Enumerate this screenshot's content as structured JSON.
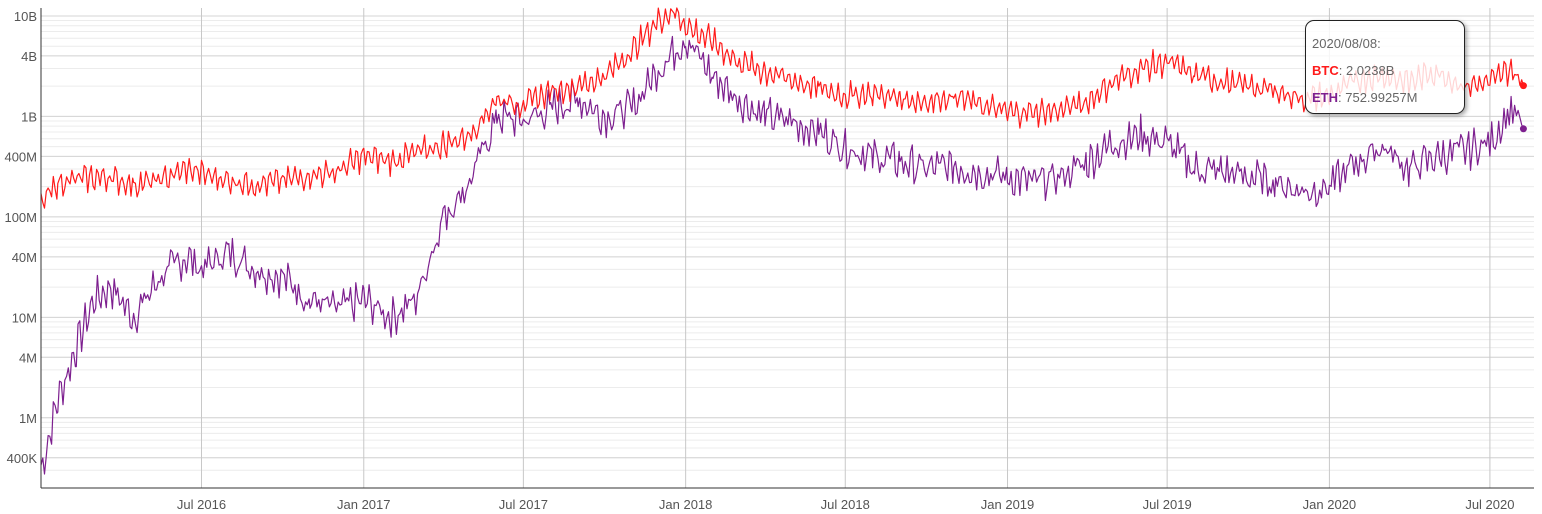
{
  "chart_data": {
    "type": "line",
    "yscale": "log",
    "ylim": [
      200000,
      12000000000
    ],
    "xlim": [
      "2016-01-01",
      "2020-08-20"
    ],
    "grid": true,
    "legend": "none",
    "y_ticks": [
      {
        "value": 10000000000,
        "label": "10B"
      },
      {
        "value": 4000000000,
        "label": "4B"
      },
      {
        "value": 1000000000,
        "label": "1B"
      },
      {
        "value": 400000000,
        "label": "400M"
      },
      {
        "value": 100000000,
        "label": "100M"
      },
      {
        "value": 40000000,
        "label": "40M"
      },
      {
        "value": 10000000,
        "label": "10M"
      },
      {
        "value": 4000000,
        "label": "4M"
      },
      {
        "value": 1000000,
        "label": "1M"
      },
      {
        "value": 400000,
        "label": "400K"
      }
    ],
    "x_ticks": [
      {
        "date": "2016-07-01",
        "label": "Jul 2016"
      },
      {
        "date": "2017-01-01",
        "label": "Jan 2017"
      },
      {
        "date": "2017-07-01",
        "label": "Jul 2017"
      },
      {
        "date": "2018-01-01",
        "label": "Jan 2018"
      },
      {
        "date": "2018-07-01",
        "label": "Jul 2018"
      },
      {
        "date": "2019-01-01",
        "label": "Jan 2019"
      },
      {
        "date": "2019-07-01",
        "label": "Jul 2019"
      },
      {
        "date": "2020-01-01",
        "label": "Jan 2020"
      },
      {
        "date": "2020-07-01",
        "label": "Jul 2020"
      }
    ],
    "series": [
      {
        "name": "BTC",
        "color": "#ff1a1a",
        "points": [
          [
            "2016-01-01",
            130000000
          ],
          [
            "2016-01-20",
            220000000
          ],
          [
            "2016-02-15",
            240000000
          ],
          [
            "2016-03-15",
            250000000
          ],
          [
            "2016-04-15",
            210000000
          ],
          [
            "2016-05-15",
            230000000
          ],
          [
            "2016-06-15",
            300000000
          ],
          [
            "2016-07-01",
            270000000
          ],
          [
            "2016-08-01",
            230000000
          ],
          [
            "2016-09-01",
            210000000
          ],
          [
            "2016-10-01",
            230000000
          ],
          [
            "2016-11-01",
            260000000
          ],
          [
            "2016-12-01",
            280000000
          ],
          [
            "2017-01-01",
            400000000
          ],
          [
            "2017-02-01",
            360000000
          ],
          [
            "2017-03-01",
            430000000
          ],
          [
            "2017-04-01",
            520000000
          ],
          [
            "2017-05-01",
            650000000
          ],
          [
            "2017-06-01",
            1500000000
          ],
          [
            "2017-07-01",
            1300000000
          ],
          [
            "2017-08-01",
            1800000000
          ],
          [
            "2017-09-01",
            2000000000
          ],
          [
            "2017-10-01",
            2500000000
          ],
          [
            "2017-11-01",
            4500000000
          ],
          [
            "2017-12-01",
            9000000000
          ],
          [
            "2017-12-20",
            11500000000
          ],
          [
            "2018-01-01",
            8000000000
          ],
          [
            "2018-02-01",
            5500000000
          ],
          [
            "2018-03-01",
            3500000000
          ],
          [
            "2018-04-01",
            2800000000
          ],
          [
            "2018-05-01",
            2300000000
          ],
          [
            "2018-06-01",
            1900000000
          ],
          [
            "2018-07-01",
            1600000000
          ],
          [
            "2018-08-01",
            1700000000
          ],
          [
            "2018-09-01",
            1500000000
          ],
          [
            "2018-10-01",
            1400000000
          ],
          [
            "2018-11-01",
            1600000000
          ],
          [
            "2018-12-01",
            1300000000
          ],
          [
            "2019-01-01",
            1100000000
          ],
          [
            "2019-02-01",
            1100000000
          ],
          [
            "2019-03-01",
            1150000000
          ],
          [
            "2019-04-01",
            1400000000
          ],
          [
            "2019-05-01",
            2200000000
          ],
          [
            "2019-06-01",
            3000000000
          ],
          [
            "2019-07-01",
            3500000000
          ],
          [
            "2019-08-01",
            2600000000
          ],
          [
            "2019-09-01",
            2200000000
          ],
          [
            "2019-10-01",
            2000000000
          ],
          [
            "2019-11-01",
            1800000000
          ],
          [
            "2019-12-01",
            1500000000
          ],
          [
            "2020-01-01",
            1600000000
          ],
          [
            "2020-02-01",
            2300000000
          ],
          [
            "2020-03-01",
            2600000000
          ],
          [
            "2020-04-01",
            2200000000
          ],
          [
            "2020-05-01",
            2800000000
          ],
          [
            "2020-06-01",
            2000000000
          ],
          [
            "2020-07-01",
            2200000000
          ],
          [
            "2020-07-25",
            3000000000
          ],
          [
            "2020-08-08",
            2023800000
          ]
        ]
      },
      {
        "name": "ETH",
        "color": "#7d1f8f",
        "points": [
          [
            "2016-01-01",
            300000
          ],
          [
            "2016-01-20",
            1500000
          ],
          [
            "2016-02-10",
            5000000
          ],
          [
            "2016-03-01",
            15000000
          ],
          [
            "2016-03-20",
            20000000
          ],
          [
            "2016-04-15",
            10000000
          ],
          [
            "2016-05-15",
            25000000
          ],
          [
            "2016-06-15",
            40000000
          ],
          [
            "2016-07-01",
            30000000
          ],
          [
            "2016-08-01",
            45000000
          ],
          [
            "2016-09-01",
            30000000
          ],
          [
            "2016-10-01",
            25000000
          ],
          [
            "2016-11-01",
            15000000
          ],
          [
            "2016-12-01",
            12000000
          ],
          [
            "2017-01-01",
            15000000
          ],
          [
            "2017-02-01",
            10000000
          ],
          [
            "2017-03-01",
            15000000
          ],
          [
            "2017-04-01",
            100000000
          ],
          [
            "2017-05-01",
            220000000
          ],
          [
            "2017-06-01",
            1000000000
          ],
          [
            "2017-07-01",
            900000000
          ],
          [
            "2017-08-01",
            1200000000
          ],
          [
            "2017-09-01",
            1500000000
          ],
          [
            "2017-10-01",
            1000000000
          ],
          [
            "2017-11-01",
            1200000000
          ],
          [
            "2017-12-01",
            3000000000
          ],
          [
            "2018-01-01",
            6000000000
          ],
          [
            "2018-02-01",
            2500000000
          ],
          [
            "2018-03-01",
            1500000000
          ],
          [
            "2018-04-01",
            1000000000
          ],
          [
            "2018-05-01",
            900000000
          ],
          [
            "2018-06-01",
            700000000
          ],
          [
            "2018-07-01",
            500000000
          ],
          [
            "2018-08-01",
            400000000
          ],
          [
            "2018-09-01",
            350000000
          ],
          [
            "2018-10-01",
            300000000
          ],
          [
            "2018-11-01",
            320000000
          ],
          [
            "2018-12-01",
            280000000
          ],
          [
            "2019-01-01",
            250000000
          ],
          [
            "2019-02-01",
            220000000
          ],
          [
            "2019-03-01",
            250000000
          ],
          [
            "2019-04-01",
            350000000
          ],
          [
            "2019-05-01",
            550000000
          ],
          [
            "2019-06-01",
            650000000
          ],
          [
            "2019-07-01",
            550000000
          ],
          [
            "2019-08-01",
            300000000
          ],
          [
            "2019-09-01",
            280000000
          ],
          [
            "2019-10-01",
            250000000
          ],
          [
            "2019-11-01",
            220000000
          ],
          [
            "2019-12-01",
            180000000
          ],
          [
            "2020-01-01",
            200000000
          ],
          [
            "2020-02-01",
            350000000
          ],
          [
            "2020-03-01",
            500000000
          ],
          [
            "2020-04-01",
            300000000
          ],
          [
            "2020-05-01",
            400000000
          ],
          [
            "2020-06-01",
            450000000
          ],
          [
            "2020-07-01",
            550000000
          ],
          [
            "2020-07-25",
            1200000000
          ],
          [
            "2020-08-08",
            752992570
          ]
        ]
      }
    ],
    "tooltip": {
      "date": "2020/08/08:",
      "rows": [
        {
          "name": "BTC",
          "value": "2.0238B",
          "color": "#ff1a1a"
        },
        {
          "name": "ETH",
          "value": "752.99257M",
          "color": "#7d1f8f"
        }
      ]
    }
  }
}
